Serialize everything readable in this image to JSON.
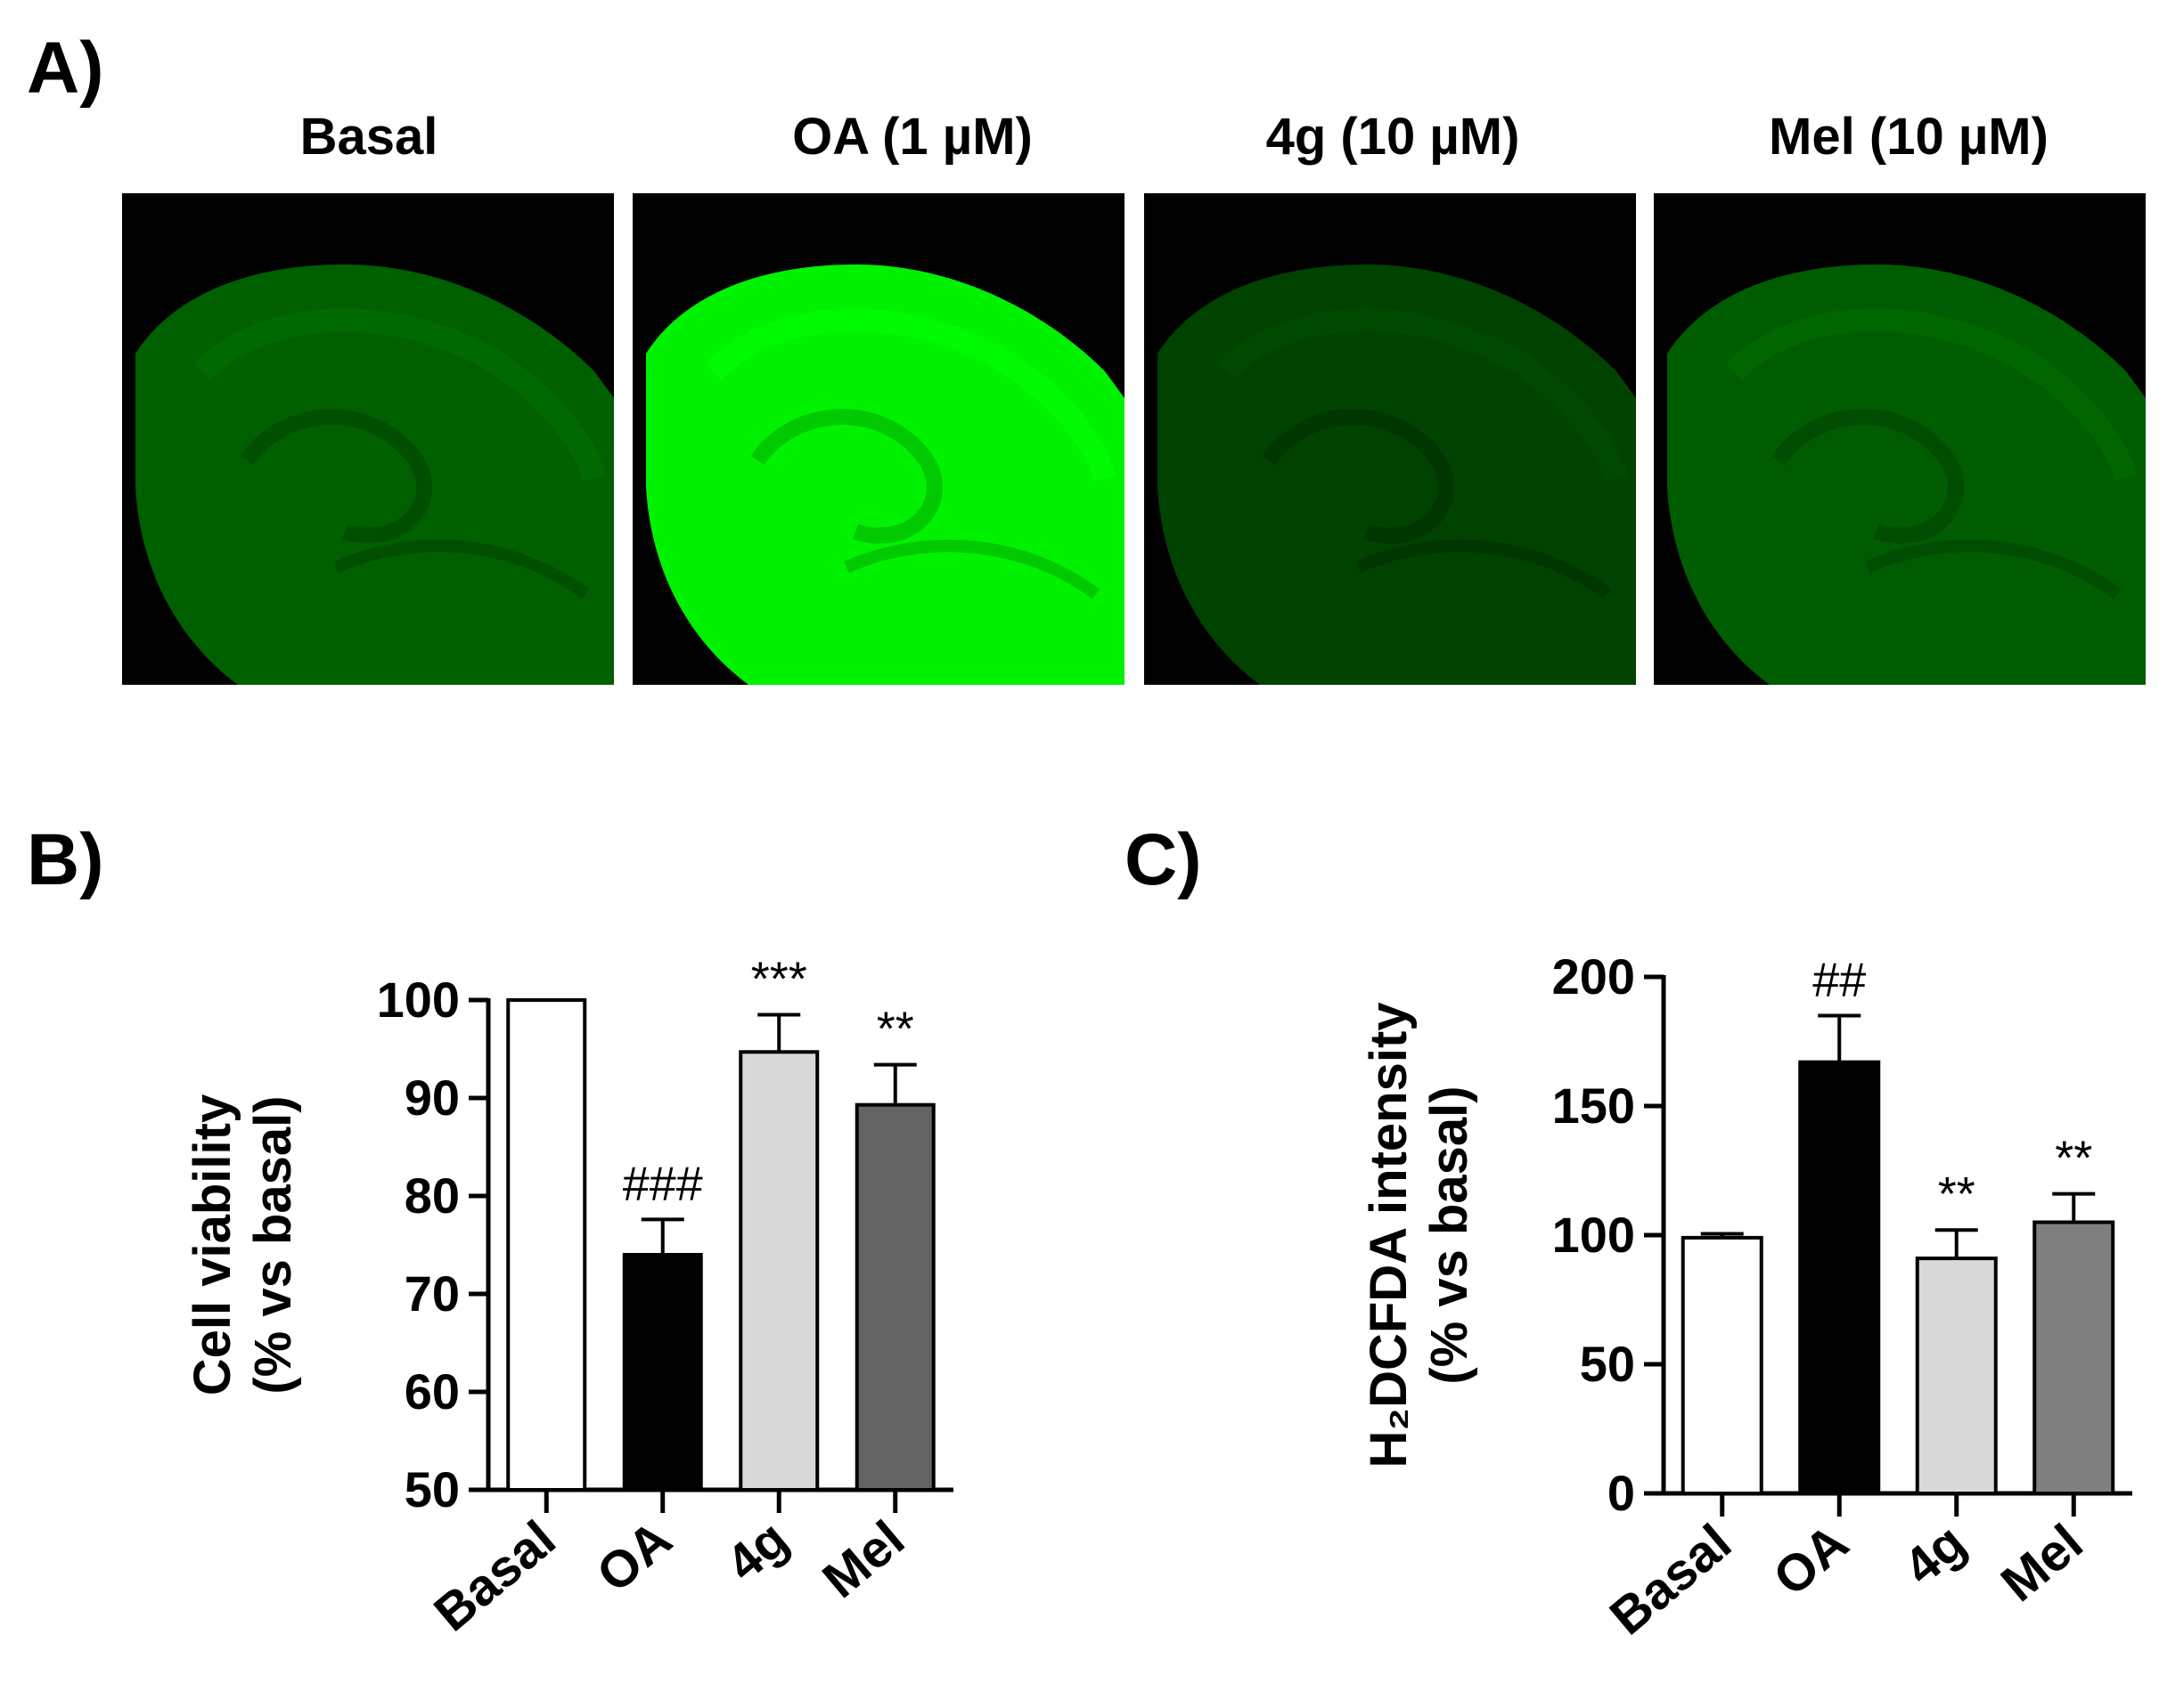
{
  "panel_labels": {
    "a": "A)",
    "b": "B)",
    "c": "C)"
  },
  "images": [
    {
      "title": "Basal",
      "brightness": 0.3
    },
    {
      "title": "OA (1 µM)",
      "brightness": 1.0
    },
    {
      "title": "4g (10 µM)",
      "brightness": 0.16
    },
    {
      "title": "Mel (10 µM)",
      "brightness": 0.28
    }
  ],
  "chart_data": [
    {
      "type": "bar",
      "categories": [
        "Basal",
        "OA",
        "4g",
        "Mel"
      ],
      "values": [
        100,
        74,
        94.7,
        89.3
      ],
      "errors": [
        0,
        3.6,
        3.8,
        4.1
      ],
      "annotations": [
        "",
        "###",
        "***",
        "**"
      ],
      "bar_colors": [
        "#ffffff",
        "#000000",
        "#d9d9d9",
        "#636363"
      ],
      "ylabel": [
        "Cell viability",
        "(% vs basal)"
      ],
      "ylim": [
        50,
        100
      ],
      "yticks": [
        50,
        60,
        70,
        80,
        90,
        100
      ]
    },
    {
      "type": "bar",
      "categories": [
        "Basal",
        "OA",
        "4g",
        "Mel"
      ],
      "values": [
        99,
        167,
        91,
        105
      ],
      "errors": [
        1.5,
        18,
        11,
        11
      ],
      "annotations": [
        "",
        "##",
        "**",
        "**"
      ],
      "bar_colors": [
        "#ffffff",
        "#000000",
        "#d9d9d9",
        "#7f7f7f"
      ],
      "ylabel": [
        "H₂DCFDA intensity",
        "(% vs basal)"
      ],
      "ylim": [
        0,
        200
      ],
      "yticks": [
        0,
        50,
        100,
        150,
        200
      ]
    }
  ]
}
